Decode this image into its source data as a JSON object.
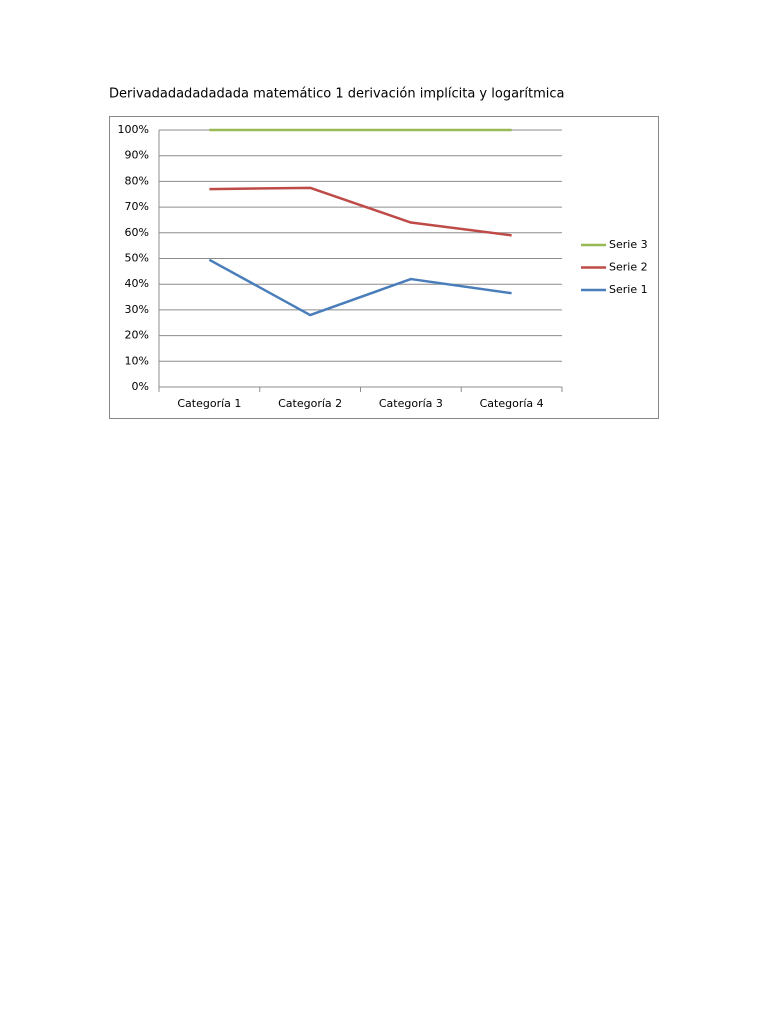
{
  "chart_data": {
    "type": "line",
    "title": "Derivadadadadadada matemático 1 derivación implícita y logarítmica",
    "categories": [
      "Categoría 1",
      "Categoría 2",
      "Categoría 3",
      "Categoría 4"
    ],
    "series": [
      {
        "name": "Serie 1",
        "color": "#4a7ebb",
        "values": [
          49.5,
          28,
          42,
          36.5
        ]
      },
      {
        "name": "Serie 2",
        "color": "#be4b48",
        "values": [
          77,
          77.5,
          64,
          59
        ]
      },
      {
        "name": "Serie 3",
        "color": "#98b954",
        "values": [
          100,
          100,
          100,
          100
        ]
      }
    ],
    "ylim": [
      0,
      100
    ],
    "yticks": [
      {
        "value": 0,
        "label": "0%"
      },
      {
        "value": 10,
        "label": "10%"
      },
      {
        "value": 20,
        "label": "20%"
      },
      {
        "value": 30,
        "label": "30%"
      },
      {
        "value": 40,
        "label": "40%"
      },
      {
        "value": 50,
        "label": "50%"
      },
      {
        "value": 60,
        "label": "60%"
      },
      {
        "value": 70,
        "label": "70%"
      },
      {
        "value": 80,
        "label": "80%"
      },
      {
        "value": 90,
        "label": "90%"
      },
      {
        "value": 100,
        "label": "100%"
      }
    ],
    "grid": true,
    "legend": "right"
  }
}
